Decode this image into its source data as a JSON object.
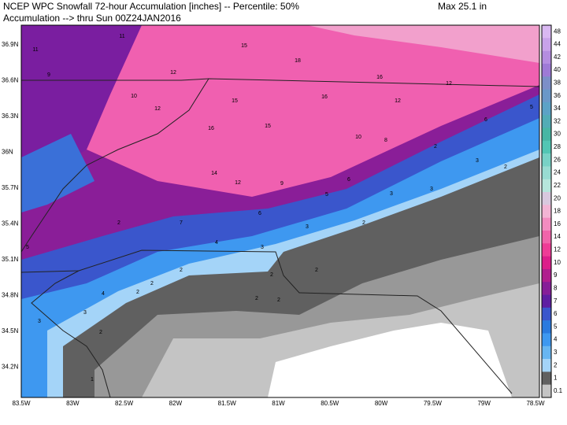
{
  "header": {
    "title_line1": "NCEP WPC Snowfall 72-hour Accumulation [inches] -- Percentile: 50%",
    "title_line2": "Accumulation --> thru Sun 00Z24JAN2016",
    "max": "Max 25.1 in"
  },
  "lat_labels": [
    "36.9N",
    "36.6N",
    "36.3N",
    "36N",
    "35.7N",
    "35.4N",
    "35.1N",
    "34.8N",
    "34.5N",
    "34.2N"
  ],
  "lon_labels": [
    "83.5W",
    "83W",
    "82.5W",
    "82W",
    "81.5W",
    "81W",
    "80.5W",
    "80W",
    "79.5W",
    "79W",
    "78.5W"
  ],
  "colorbar": {
    "labels": [
      "48",
      "44",
      "42",
      "40",
      "38",
      "36",
      "34",
      "32",
      "30",
      "28",
      "26",
      "24",
      "22",
      "20",
      "18",
      "16",
      "14",
      "12",
      "10",
      "9",
      "8",
      "7",
      "6",
      "5",
      "4",
      "3",
      "2",
      "1",
      "0.1"
    ],
    "colors": [
      "#d9b8f2",
      "#c8a2ea",
      "#b48de0",
      "#9e7ad6",
      "#7c8fc8",
      "#6a98c8",
      "#5ca2c6",
      "#52acb6",
      "#48b6a4",
      "#52c6b4",
      "#78d2c6",
      "#98dcd2",
      "#b6e6dc",
      "#d8c8de",
      "#f2b4d4",
      "#f28cc0",
      "#f064aa",
      "#ee3c96",
      "#dc1e8a",
      "#b01e8e",
      "#861e98",
      "#5e1ea2",
      "#3a56cc",
      "#2a7ade",
      "#3e98f0",
      "#68b6f2",
      "#a4d4f8",
      "#606060",
      "#c4c4c4"
    ]
  },
  "contour_labels": [
    "11",
    "11",
    "9",
    "15",
    "18",
    "16",
    "12",
    "12",
    "10",
    "12",
    "15",
    "16",
    "12",
    "16",
    "15",
    "10",
    "8",
    "6",
    "5",
    "2",
    "14",
    "12",
    "9",
    "6",
    "3",
    "2",
    "5",
    "3",
    "3",
    "2",
    "6",
    "3",
    "7",
    "4",
    "3",
    "2",
    "2",
    "2",
    "2",
    "2",
    "2",
    "2",
    "3",
    "4",
    "3",
    "2",
    "5",
    "2",
    "1"
  ]
}
